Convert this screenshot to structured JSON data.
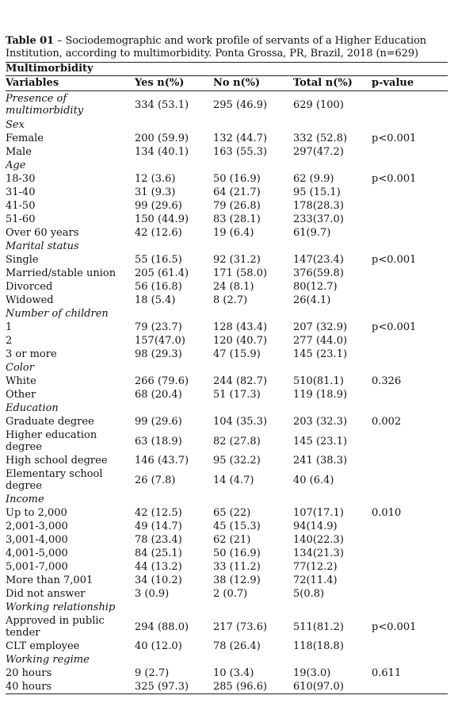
{
  "caption": {
    "label": "Table 01",
    "text": " – Sociodemographic and work profile of servants of a Higher Education Institution, according to multimorbidity. Ponta Grossa, PR, Brazil, 2018 (n=629)"
  },
  "table": {
    "group_header": "Multimorbidity",
    "headers": [
      "Variables",
      "Yes n(%)",
      "No n(%)",
      "Total n(%)",
      "p-value"
    ],
    "presence": {
      "label": "Presence of multimorbidity",
      "yes": "334 (53.1)",
      "no": "295 (46.9)",
      "total": "629 (100)"
    },
    "sex": {
      "label": "Sex",
      "rows": [
        {
          "label": "Female",
          "yes": "200 (59.9)",
          "no": "132 (44.7)",
          "total": "332 (52.8)",
          "p": "p<0.001"
        },
        {
          "label": "Male",
          "yes": "134 (40.1)",
          "no": "163 (55.3)",
          "total": "297(47.2)",
          "p": ""
        }
      ]
    },
    "age": {
      "label": "Age",
      "rows": [
        {
          "label": "18-30",
          "yes": "12 (3.6)",
          "no": "50 (16.9)",
          "total": "62 (9.9)",
          "p": "p<0.001"
        },
        {
          "label": "31-40",
          "yes": "31 (9.3)",
          "no": "64 (21.7)",
          "total": "95 (15.1)",
          "p": ""
        },
        {
          "label": "41-50",
          "yes": "99 (29.6)",
          "no": "79 (26.8)",
          "total": "178(28.3)",
          "p": ""
        },
        {
          "label": "51-60",
          "yes": "150 (44.9)",
          "no": "83 (28.1)",
          "total": "233(37.0)",
          "p": ""
        },
        {
          "label": "Over 60 years",
          "yes": "42 (12.6)",
          "no": "19 (6.4)",
          "total": "61(9.7)",
          "p": ""
        }
      ]
    },
    "marital": {
      "label": "Marital status",
      "rows": [
        {
          "label": "Single",
          "yes": "55 (16.5)",
          "no": "92 (31.2)",
          "total": "147(23.4)",
          "p": "p<0.001"
        },
        {
          "label": "Married/stable union",
          "yes": "205 (61.4)",
          "no": "171 (58.0)",
          "total": "376(59.8)",
          "p": ""
        },
        {
          "label": "Divorced",
          "yes": "56 (16.8)",
          "no": "24 (8.1)",
          "total": "80(12.7)",
          "p": ""
        },
        {
          "label": "Widowed",
          "yes": "18 (5.4)",
          "no": "8 (2.7)",
          "total": "26(4.1)",
          "p": ""
        }
      ]
    },
    "children": {
      "label": "Number of children",
      "rows": [
        {
          "label": "1",
          "yes": "79 (23.7)",
          "no": "128 (43.4)",
          "total": "207 (32.9)",
          "p": "p<0.001"
        },
        {
          "label": "2",
          "yes": "157(47.0)",
          "no": "120 (40.7)",
          "total": "277 (44.0)",
          "p": ""
        },
        {
          "label": "3 or more",
          "yes": "98 (29.3)",
          "no": "47 (15.9)",
          "total": "145 (23.1)",
          "p": ""
        }
      ]
    },
    "color": {
      "label": "Color",
      "rows": [
        {
          "label": "White",
          "yes": "266 (79.6)",
          "no": "244 (82.7)",
          "total": "510(81.1)",
          "p": "0.326"
        },
        {
          "label": "Other",
          "yes": "68 (20.4)",
          "no": "51 (17.3)",
          "total": "119 (18.9)",
          "p": ""
        }
      ]
    },
    "education": {
      "label": "Education",
      "rows": [
        {
          "label": "Graduate degree",
          "yes": "99 (29.6)",
          "no": "104 (35.3)",
          "total": "203 (32.3)",
          "p": "0.002"
        },
        {
          "label": "Higher education degree",
          "yes": "63 (18.9)",
          "no": "82 (27.8)",
          "total": "145 (23.1)",
          "p": ""
        },
        {
          "label": "High school degree",
          "yes": "146 (43.7)",
          "no": "95 (32.2)",
          "total": "241 (38.3)",
          "p": ""
        },
        {
          "label": "Elementary school degree",
          "yes": "26 (7.8)",
          "no": "14 (4.7)",
          "total": "40 (6.4)",
          "p": ""
        }
      ]
    },
    "income": {
      "label": "Income",
      "rows": [
        {
          "label": "Up to 2,000",
          "yes": "42 (12.5)",
          "no": "65 (22)",
          "total": "107(17.1)",
          "p": "0.010"
        },
        {
          "label": "2,001-3,000",
          "yes": "49 (14.7)",
          "no": "45 (15.3)",
          "total": "94(14.9)",
          "p": ""
        },
        {
          "label": "3,001-4,000",
          "yes": "78 (23.4)",
          "no": "62 (21)",
          "total": "140(22.3)",
          "p": ""
        },
        {
          "label": "4,001-5,000",
          "yes": "84 (25.1)",
          "no": "50 (16.9)",
          "total": "134(21.3)",
          "p": ""
        },
        {
          "label": "5,001-7,000",
          "yes": "44 (13.2)",
          "no": "33 (11.2)",
          "total": "77(12.2)",
          "p": ""
        },
        {
          "label": "More than 7,001",
          "yes": "34 (10.2)",
          "no": "38 (12.9)",
          "total": "72(11.4)",
          "p": ""
        },
        {
          "label": "Did not answer",
          "yes": "3 (0.9)",
          "no": "2 (0.7)",
          "total": "5(0.8)",
          "p": ""
        }
      ]
    },
    "working_relationship": {
      "label": "Working relationship",
      "rows": [
        {
          "label": "Approved in public tender",
          "yes": "294 (88.0)",
          "no": "217 (73.6)",
          "total": "511(81.2)",
          "p": "p<0.001"
        },
        {
          "label": "CLT employee",
          "yes": "40 (12.0)",
          "no": "78 (26.4)",
          "total": "118(18.8)",
          "p": ""
        }
      ]
    },
    "working_regime": {
      "label": "Working regime",
      "rows": [
        {
          "label": "20 hours",
          "yes": "9 (2.7)",
          "no": "10 (3.4)",
          "total": "19(3.0)",
          "p": "0.611"
        },
        {
          "label": "40 hours",
          "yes": "325 (97.3)",
          "no": "285 (96.6)",
          "total": "610(97.0)",
          "p": ""
        }
      ]
    }
  }
}
